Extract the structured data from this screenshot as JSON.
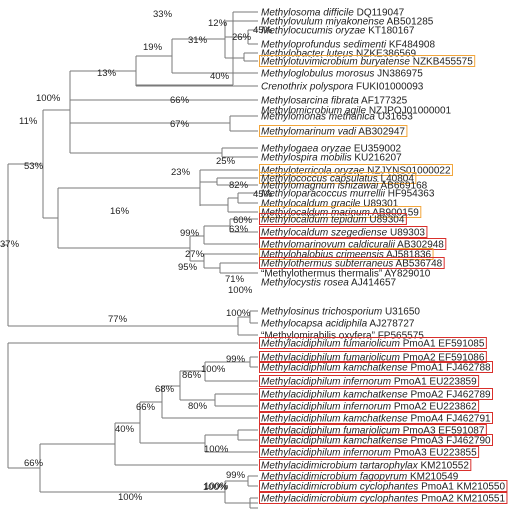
{
  "colors": {
    "line": "#7a7a7a",
    "text": "#222222",
    "orange_box": "#f2a53a",
    "red_box": "#d9302c"
  },
  "leaves": [
    {
      "id": "L0",
      "genus": "Methylosoma difficile",
      "acc": "DQ119047",
      "box": "none"
    },
    {
      "id": "L1",
      "genus": "Methylovulum miyakonense",
      "acc": "AB501285",
      "box": "none"
    },
    {
      "id": "L2",
      "genus": "Methylocucumis oryzae",
      "acc": "KT180167",
      "box": "none"
    },
    {
      "id": "L3",
      "genus": "Methyloprofundus sedimenti",
      "acc": "KF484908",
      "box": "none"
    },
    {
      "id": "L4",
      "genus": "Methylobacter luteus",
      "acc": "NZKE386569",
      "box": "none"
    },
    {
      "id": "L5",
      "genus": "Methylotuvimicrobium buryatense",
      "acc": "NZKB455575",
      "box": "orange"
    },
    {
      "id": "L6",
      "genus": "Methyloglobulus morosus",
      "acc": "JN386975",
      "box": "none"
    },
    {
      "id": "L7",
      "genus": "Crenothrix polyspora",
      "acc": "FUKI01000093",
      "box": "none"
    },
    {
      "id": "L8",
      "genus": "Methylosarcina fibrata",
      "acc": "AF177325",
      "box": "none"
    },
    {
      "id": "L9",
      "genus": "Methylomicrobium agile",
      "acc": "NZJPOJ01000001",
      "box": "none"
    },
    {
      "id": "L10",
      "genus": "Methylomonas methanica",
      "acc": "U31653",
      "box": "none"
    },
    {
      "id": "L11",
      "genus": "Methylomarinum vadi",
      "acc": "AB302947",
      "box": "orange"
    },
    {
      "id": "L12",
      "genus": "Methylogaea oryzae",
      "acc": "EU359002",
      "box": "none"
    },
    {
      "id": "L13",
      "genus": "Methylospira mobilis",
      "acc": "KU216207",
      "box": "none"
    },
    {
      "id": "L14",
      "genus": "Methyloterricola oryzae",
      "acc": "NZJYNS01000022",
      "box": "orange"
    },
    {
      "id": "L15",
      "genus": "Methylococcus capsulatus",
      "acc": "L40804",
      "box": "orange"
    },
    {
      "id": "L16",
      "genus": "Methylomagnum ishizawai",
      "acc": "AB669168",
      "box": "none"
    },
    {
      "id": "L17",
      "genus": "Methyloparacoccus murrellii",
      "acc": "HF954363",
      "box": "none"
    },
    {
      "id": "L18",
      "genus": "Methylocaldum gracile",
      "acc": "U89301",
      "box": "none"
    },
    {
      "id": "L19",
      "genus": "Methylocaldum marinum",
      "acc": "AB900159",
      "box": "orange"
    },
    {
      "id": "L20",
      "genus": "Methylocaldum tepidum",
      "acc": "U89304",
      "box": "red"
    },
    {
      "id": "L21",
      "genus": "Methylocaldum szegediense",
      "acc": "U89303",
      "box": "red"
    },
    {
      "id": "L22",
      "genus": "Methylomarinovum caldicuralii",
      "acc": "AB302948",
      "box": "red"
    },
    {
      "id": "L23",
      "genus": "Methylohalobius crimeensis",
      "acc": "AJ581836",
      "box": "orange"
    },
    {
      "id": "L24",
      "genus": "Methylothermus subterraneus",
      "acc": "AB536748",
      "box": "red"
    },
    {
      "id": "L25",
      "genus": "“Methylothermus thermalis”",
      "acc": "AY829010",
      "box": "none",
      "plain": true
    },
    {
      "id": "L26",
      "genus": "Methylocystis rosea",
      "acc": "AJ414657",
      "box": "none"
    },
    {
      "id": "L27",
      "genus": "Methylosinus trichosporium",
      "acc": "U31650",
      "box": "none"
    },
    {
      "id": "L28",
      "genus": "Methylocapsa acidiphila",
      "acc": "AJ278727",
      "box": "none"
    },
    {
      "id": "L29",
      "genus": "“Methylomirabilis oxyfera”",
      "acc": "FP565575",
      "box": "none",
      "plain": true
    },
    {
      "id": "L30",
      "genus": "Methylacidiphilum fumariolicum",
      "acc": "PmoA1 EF591085",
      "box": "red"
    },
    {
      "id": "L31",
      "genus": "Methylacidiphilum fumariolicum",
      "acc": "PmoA2 EF591086",
      "box": "red"
    },
    {
      "id": "L32",
      "genus": "Methylacidiphilum kamchatkense",
      "acc": "PmoA1 FJ462788",
      "box": "red"
    },
    {
      "id": "L33",
      "genus": "Methylacidiphilum infernorum",
      "acc": "PmoA1 EU223859",
      "box": "red"
    },
    {
      "id": "L34",
      "genus": "Methylacidiphilum kamchatkense",
      "acc": "PmoA2 FJ462789",
      "box": "red"
    },
    {
      "id": "L35",
      "genus": "Methylacidiphilum infernorum",
      "acc": "PmoA2 EU223862",
      "box": "red"
    },
    {
      "id": "L36",
      "genus": "Methylacidiphilum kamchatkense",
      "acc": "PmoA4 FJ462791",
      "box": "red"
    },
    {
      "id": "L37",
      "genus": "Methylacidiphilum fumariolicum",
      "acc": "PmoA3 EF591087",
      "box": "red"
    },
    {
      "id": "L38",
      "genus": "Methylacidiphilum kamchatkense",
      "acc": "PmoA3 FJ462790",
      "box": "red"
    },
    {
      "id": "L39",
      "genus": "Methylacidiphilum infernorum",
      "acc": "PmoA3 EU223855",
      "box": "red"
    },
    {
      "id": "L40",
      "genus": "Methylacidimicrobium tartarophylax",
      "acc": "KM210552",
      "box": "red"
    },
    {
      "id": "L41",
      "genus": "Methylacidimicrobium fagopyrum",
      "acc": "KM210549",
      "box": "none"
    },
    {
      "id": "L42",
      "genus": "Methylacidimicrobium cyclophantes",
      "acc": "PmoA1 KM210550",
      "box": "red"
    },
    {
      "id": "L43",
      "genus": "Methylacidimicrobium cyclophantes",
      "acc": "PmoA2 KM210551",
      "box": "red"
    }
  ],
  "bootstrap": [
    {
      "id": "B33",
      "label": "33%"
    },
    {
      "id": "B12",
      "label": "12%"
    },
    {
      "id": "B45a",
      "label": "45%"
    },
    {
      "id": "B26",
      "label": "26%"
    },
    {
      "id": "B31",
      "label": "31%"
    },
    {
      "id": "B19",
      "label": "19%"
    },
    {
      "id": "B40a",
      "label": "40%"
    },
    {
      "id": "B13",
      "label": "13%"
    },
    {
      "id": "B100a",
      "label": "100%"
    },
    {
      "id": "B66a",
      "label": "66%"
    },
    {
      "id": "B11",
      "label": "11%"
    },
    {
      "id": "B67",
      "label": "67%"
    },
    {
      "id": "B53",
      "label": "53%"
    },
    {
      "id": "B25",
      "label": "25%"
    },
    {
      "id": "B23",
      "label": "23%"
    },
    {
      "id": "B82",
      "label": "82%"
    },
    {
      "id": "B45b",
      "label": "45%"
    },
    {
      "id": "B16",
      "label": "16%"
    },
    {
      "id": "B60",
      "label": "60%"
    },
    {
      "id": "B99a",
      "label": "99%"
    },
    {
      "id": "B63",
      "label": "63%"
    },
    {
      "id": "B27",
      "label": "27%"
    },
    {
      "id": "B95",
      "label": "95%"
    },
    {
      "id": "B71",
      "label": "71%"
    },
    {
      "id": "B100b",
      "label": "100%"
    },
    {
      "id": "B37",
      "label": "37%"
    },
    {
      "id": "B77",
      "label": "77%"
    },
    {
      "id": "B100c",
      "label": "100%"
    },
    {
      "id": "B99b",
      "label": "99%"
    },
    {
      "id": "B86",
      "label": "86%"
    },
    {
      "id": "B100d",
      "label": "100%"
    },
    {
      "id": "B68",
      "label": "68%"
    },
    {
      "id": "B80",
      "label": "80%"
    },
    {
      "id": "B66b",
      "label": "66%"
    },
    {
      "id": "B40b",
      "label": "40%"
    },
    {
      "id": "B100e",
      "label": "100%"
    },
    {
      "id": "B66c",
      "label": "66%"
    },
    {
      "id": "B100f",
      "label": "100%"
    },
    {
      "id": "B99c",
      "label": "99%"
    },
    {
      "id": "B100g",
      "label": "100%"
    },
    {
      "id": "B100h",
      "label": "100%"
    }
  ]
}
